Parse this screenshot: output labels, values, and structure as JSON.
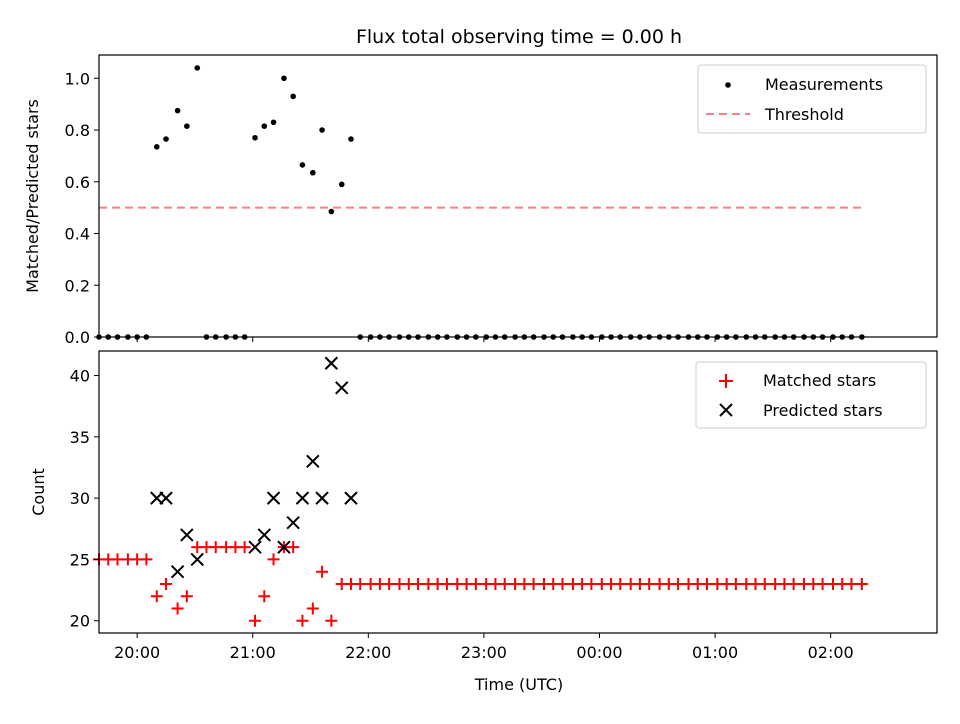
{
  "chart_data": [
    {
      "type": "scatter",
      "title": "Flux total observing time = 0.00 h",
      "xlabel": "",
      "ylabel": "Matched/Predicted stars",
      "xlim": [
        -0.33,
        6.92
      ],
      "ylim": [
        0.0,
        1.09
      ],
      "yticks": [
        0.0,
        0.2,
        0.4,
        0.6,
        0.8,
        1.0
      ],
      "ytick_labels": [
        "0.0",
        "0.2",
        "0.4",
        "0.6",
        "0.8",
        "1.0"
      ],
      "legend_position": "top-right",
      "series": [
        {
          "name": "Measurements",
          "color": "#000000",
          "marker": "dot",
          "points": [
            [
              -0.33,
              0
            ],
            [
              -0.25,
              0
            ],
            [
              -0.17,
              0
            ],
            [
              -0.08,
              0
            ],
            [
              0.0,
              0
            ],
            [
              0.08,
              0
            ],
            [
              0.17,
              0.735
            ],
            [
              0.25,
              0.765
            ],
            [
              0.35,
              0.875
            ],
            [
              0.43,
              0.815
            ],
            [
              0.52,
              1.04
            ],
            [
              0.6,
              0
            ],
            [
              0.68,
              0
            ],
            [
              0.77,
              0
            ],
            [
              0.85,
              0
            ],
            [
              0.93,
              0
            ],
            [
              1.02,
              0.77
            ],
            [
              1.1,
              0.815
            ],
            [
              1.18,
              0.83
            ],
            [
              1.27,
              1.0
            ],
            [
              1.35,
              0.93
            ],
            [
              1.43,
              0.665
            ],
            [
              1.52,
              0.635
            ],
            [
              1.6,
              0.8
            ],
            [
              1.68,
              0.485
            ],
            [
              1.77,
              0.59
            ],
            [
              1.85,
              0.765
            ],
            [
              1.93,
              0
            ],
            [
              2.02,
              0
            ],
            [
              2.1,
              0
            ],
            [
              2.18,
              0
            ],
            [
              2.27,
              0
            ],
            [
              2.35,
              0
            ],
            [
              2.43,
              0
            ],
            [
              2.52,
              0
            ],
            [
              2.6,
              0
            ],
            [
              2.68,
              0
            ],
            [
              2.77,
              0
            ],
            [
              2.85,
              0
            ],
            [
              2.93,
              0
            ],
            [
              3.02,
              0
            ],
            [
              3.1,
              0
            ],
            [
              3.18,
              0
            ],
            [
              3.27,
              0
            ],
            [
              3.35,
              0
            ],
            [
              3.43,
              0
            ],
            [
              3.52,
              0
            ],
            [
              3.6,
              0
            ],
            [
              3.68,
              0
            ],
            [
              3.77,
              0
            ],
            [
              3.85,
              0
            ],
            [
              3.93,
              0
            ],
            [
              4.02,
              0
            ],
            [
              4.1,
              0
            ],
            [
              4.18,
              0
            ],
            [
              4.27,
              0
            ],
            [
              4.35,
              0
            ],
            [
              4.43,
              0
            ],
            [
              4.52,
              0
            ],
            [
              4.6,
              0
            ],
            [
              4.68,
              0
            ],
            [
              4.77,
              0
            ],
            [
              4.85,
              0
            ],
            [
              4.93,
              0
            ],
            [
              5.02,
              0
            ],
            [
              5.1,
              0
            ],
            [
              5.18,
              0
            ],
            [
              5.27,
              0
            ],
            [
              5.35,
              0
            ],
            [
              5.43,
              0
            ],
            [
              5.52,
              0
            ],
            [
              5.6,
              0
            ],
            [
              5.68,
              0
            ],
            [
              5.77,
              0
            ],
            [
              5.85,
              0
            ],
            [
              5.93,
              0
            ],
            [
              6.02,
              0
            ],
            [
              6.1,
              0
            ],
            [
              6.18,
              0
            ],
            [
              6.27,
              0
            ]
          ]
        },
        {
          "name": "Threshold",
          "color": "#ff7f7f",
          "style": "dashed-line",
          "points": [
            [
              -0.33,
              0.5
            ],
            [
              6.27,
              0.5
            ]
          ]
        }
      ]
    },
    {
      "type": "scatter",
      "title": "",
      "xlabel": "Time (UTC)",
      "ylabel": "Count",
      "xlim": [
        -0.33,
        6.92
      ],
      "ylim": [
        19.0,
        42.0
      ],
      "yticks": [
        20,
        25,
        30,
        35,
        40
      ],
      "ytick_labels": [
        "20",
        "25",
        "30",
        "35",
        "40"
      ],
      "xticks": [
        0,
        1,
        2,
        3,
        4,
        5,
        6
      ],
      "xtick_labels": [
        "20:00",
        "21:00",
        "22:00",
        "23:00",
        "00:00",
        "01:00",
        "02:00"
      ],
      "legend_position": "top-right",
      "series": [
        {
          "name": "Matched stars",
          "color": "#ff0000",
          "marker": "plus",
          "points": [
            [
              -0.33,
              25
            ],
            [
              -0.25,
              25
            ],
            [
              -0.17,
              25
            ],
            [
              -0.08,
              25
            ],
            [
              0.0,
              25
            ],
            [
              0.08,
              25
            ],
            [
              0.17,
              22
            ],
            [
              0.25,
              23
            ],
            [
              0.35,
              21
            ],
            [
              0.43,
              22
            ],
            [
              0.52,
              26
            ],
            [
              0.6,
              26
            ],
            [
              0.68,
              26
            ],
            [
              0.77,
              26
            ],
            [
              0.85,
              26
            ],
            [
              0.93,
              26
            ],
            [
              1.02,
              20
            ],
            [
              1.1,
              22
            ],
            [
              1.18,
              25
            ],
            [
              1.27,
              26
            ],
            [
              1.35,
              26
            ],
            [
              1.43,
              20
            ],
            [
              1.52,
              21
            ],
            [
              1.6,
              24
            ],
            [
              1.68,
              20
            ],
            [
              1.77,
              23
            ],
            [
              1.85,
              23
            ],
            [
              1.93,
              23
            ],
            [
              2.02,
              23
            ],
            [
              2.1,
              23
            ],
            [
              2.18,
              23
            ],
            [
              2.27,
              23
            ],
            [
              2.35,
              23
            ],
            [
              2.43,
              23
            ],
            [
              2.52,
              23
            ],
            [
              2.6,
              23
            ],
            [
              2.68,
              23
            ],
            [
              2.77,
              23
            ],
            [
              2.85,
              23
            ],
            [
              2.93,
              23
            ],
            [
              3.02,
              23
            ],
            [
              3.1,
              23
            ],
            [
              3.18,
              23
            ],
            [
              3.27,
              23
            ],
            [
              3.35,
              23
            ],
            [
              3.43,
              23
            ],
            [
              3.52,
              23
            ],
            [
              3.6,
              23
            ],
            [
              3.68,
              23
            ],
            [
              3.77,
              23
            ],
            [
              3.85,
              23
            ],
            [
              3.93,
              23
            ],
            [
              4.02,
              23
            ],
            [
              4.1,
              23
            ],
            [
              4.18,
              23
            ],
            [
              4.27,
              23
            ],
            [
              4.35,
              23
            ],
            [
              4.43,
              23
            ],
            [
              4.52,
              23
            ],
            [
              4.6,
              23
            ],
            [
              4.68,
              23
            ],
            [
              4.77,
              23
            ],
            [
              4.85,
              23
            ],
            [
              4.93,
              23
            ],
            [
              5.02,
              23
            ],
            [
              5.1,
              23
            ],
            [
              5.18,
              23
            ],
            [
              5.27,
              23
            ],
            [
              5.35,
              23
            ],
            [
              5.43,
              23
            ],
            [
              5.52,
              23
            ],
            [
              5.6,
              23
            ],
            [
              5.68,
              23
            ],
            [
              5.77,
              23
            ],
            [
              5.85,
              23
            ],
            [
              5.93,
              23
            ],
            [
              6.02,
              23
            ],
            [
              6.1,
              23
            ],
            [
              6.18,
              23
            ],
            [
              6.27,
              23
            ]
          ]
        },
        {
          "name": "Predicted stars",
          "color": "#000000",
          "marker": "x",
          "points": [
            [
              0.17,
              30
            ],
            [
              0.25,
              30
            ],
            [
              0.35,
              24
            ],
            [
              0.43,
              27
            ],
            [
              0.52,
              25
            ],
            [
              1.02,
              26
            ],
            [
              1.1,
              27
            ],
            [
              1.18,
              30
            ],
            [
              1.27,
              26
            ],
            [
              1.35,
              28
            ],
            [
              1.43,
              30
            ],
            [
              1.52,
              33
            ],
            [
              1.6,
              30
            ],
            [
              1.68,
              41
            ],
            [
              1.77,
              39
            ],
            [
              1.85,
              30
            ]
          ]
        }
      ]
    }
  ]
}
